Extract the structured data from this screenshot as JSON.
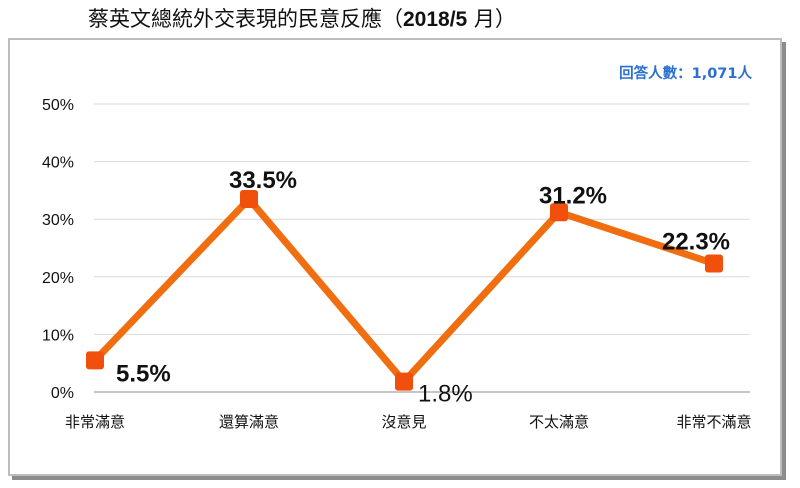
{
  "title": {
    "text": "蔡英文總統外交表現的民意反應",
    "paren_open": "（",
    "period": "2018/5",
    "month": " 月",
    "paren_close": "）"
  },
  "respondents": "回答人數：1,071人",
  "colors": {
    "line": "#f06e10",
    "marker": "#f0500c",
    "grid": "#d9d9d9",
    "frame": "#bdbdbd",
    "respondents": "#2c6fd1"
  },
  "chart_data": {
    "type": "line",
    "title": "蔡英文總統外交表現的民意反應（2018/5 月）",
    "categories": [
      "非常滿意",
      "還算滿意",
      "沒意見",
      "不太滿意",
      "非常不滿意"
    ],
    "series": [
      {
        "values": [
          5.5,
          33.5,
          1.8,
          31.2,
          22.3
        ]
      }
    ],
    "data_labels": [
      "5.5%",
      "33.5%",
      "1.8%",
      "31.2%",
      "22.3%"
    ],
    "bold_labels": [
      true,
      true,
      false,
      true,
      true
    ],
    "y_ticks": [
      "0%",
      "10%",
      "20%",
      "30%",
      "40%",
      "50%"
    ],
    "ylim": [
      0,
      50
    ],
    "grid": true,
    "xlabel": "",
    "ylabel": ""
  }
}
